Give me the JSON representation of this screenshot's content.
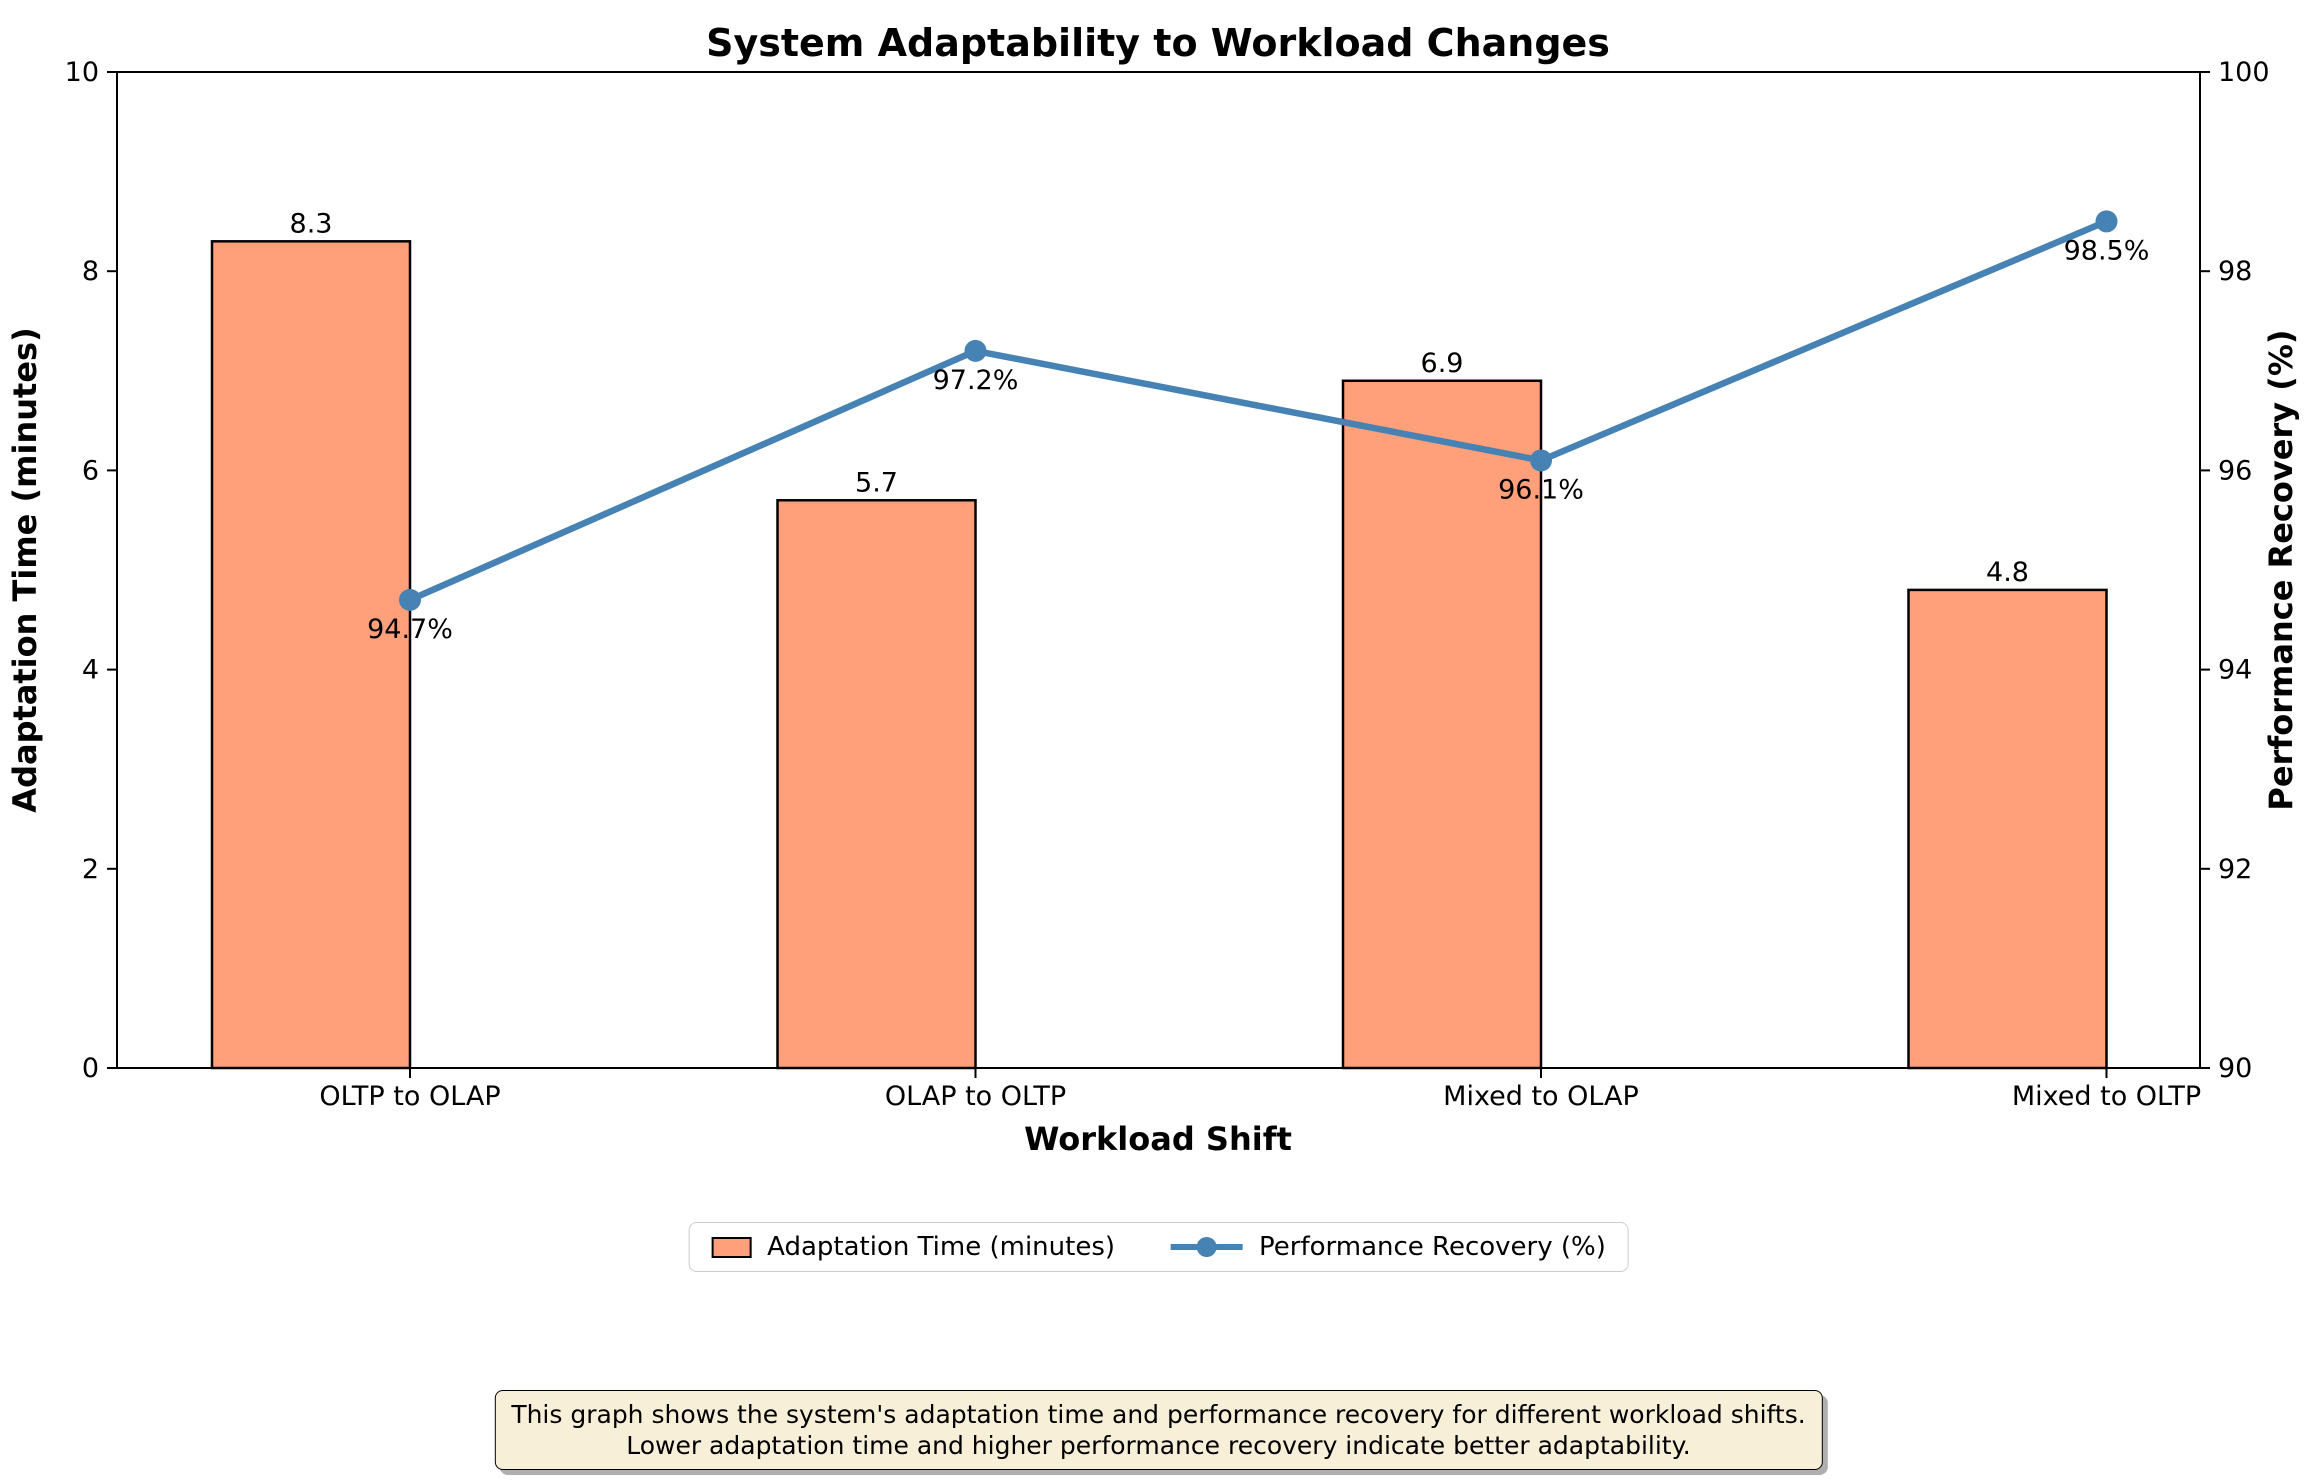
{
  "chart_data": {
    "type": "bar",
    "title": "System Adaptability to Workload Changes",
    "categories": [
      "OLTP to OLAP",
      "OLAP to OLTP",
      "Mixed to OLAP",
      "Mixed to OLTP"
    ],
    "series": [
      {
        "name": "Adaptation Time (minutes)",
        "kind": "bar",
        "axis": "left",
        "values": [
          8.3,
          5.7,
          6.9,
          4.8
        ],
        "value_labels": [
          "8.3",
          "5.7",
          "6.9",
          "4.8"
        ],
        "color": "#FFA07A",
        "edge_color": "#000000"
      },
      {
        "name": "Performance Recovery (%)",
        "kind": "line",
        "axis": "right",
        "values": [
          94.7,
          97.2,
          96.1,
          98.5
        ],
        "value_labels": [
          "94.7%",
          "97.2%",
          "96.1%",
          "98.5%"
        ],
        "color": "#4682B4"
      }
    ],
    "xlabel": "Workload Shift",
    "ylabel_left": "Adaptation Time (minutes)",
    "ylabel_right": "Performance Recovery (%)",
    "ylim_left": [
      0,
      10
    ],
    "yticks_left": [
      "0",
      "2",
      "4",
      "6",
      "8",
      "10"
    ],
    "ylim_right": [
      90,
      100
    ],
    "yticks_right": [
      "90",
      "92",
      "94",
      "96",
      "98",
      "100"
    ],
    "grid": false,
    "legend_position": "bottom-center"
  },
  "note": {
    "line1": "This graph shows the system's adaptation time and performance recovery for different workload shifts.",
    "line2": "Lower adaptation time and higher performance recovery indicate better adaptability."
  },
  "colors": {
    "bar_fill": "#FFA07A",
    "line": "#4682B4",
    "note_bg": "#f8efd8",
    "spine": "#000000"
  }
}
